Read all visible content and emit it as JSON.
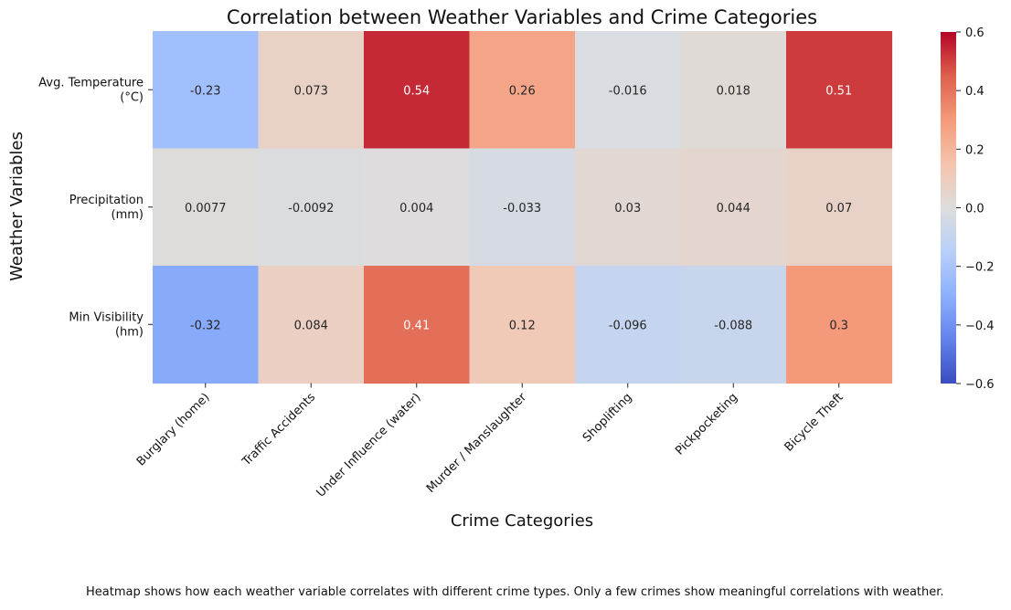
{
  "chart_data": {
    "type": "heatmap",
    "title": "Correlation between Weather Variables and Crime Categories",
    "xlabel": "Crime Categories",
    "ylabel": "Weather Variables",
    "rows": [
      [
        "Avg. Temperature",
        "(°C)"
      ],
      [
        "Precipitation",
        "(mm)"
      ],
      [
        "Min Visibility",
        "(hm)"
      ]
    ],
    "columns": [
      "Burglary (home)",
      "Traffic Accidents",
      "Under Influence (water)",
      "Murder / Manslaughter",
      "Shoplifting",
      "Pickpocketing",
      "Bicycle Theft"
    ],
    "values": [
      [
        -0.23,
        0.073,
        0.54,
        0.26,
        -0.016,
        0.018,
        0.51
      ],
      [
        0.0077,
        -0.0092,
        0.004,
        -0.033,
        0.03,
        0.044,
        0.07
      ],
      [
        -0.32,
        0.084,
        0.41,
        0.12,
        -0.096,
        -0.088,
        0.3
      ]
    ],
    "value_labels": [
      [
        "-0.23",
        "0.073",
        "0.54",
        "0.26",
        "-0.016",
        "0.018",
        "0.51"
      ],
      [
        "0.0077",
        "-0.0092",
        "0.004",
        "-0.033",
        "0.03",
        "0.044",
        "0.07"
      ],
      [
        "-0.32",
        "0.084",
        "0.41",
        "0.12",
        "-0.096",
        "-0.088",
        "0.3"
      ]
    ],
    "colormap": "coolwarm",
    "colorbar": {
      "range": [
        -0.6,
        0.6
      ],
      "ticks": [
        -0.6,
        -0.4,
        -0.2,
        0.0,
        0.2,
        0.4,
        0.6
      ],
      "tick_labels": [
        "−0.6",
        "−0.4",
        "−0.2",
        "0.0",
        "0.2",
        "0.4",
        "0.6"
      ]
    },
    "grid": false
  },
  "caption": "Heatmap shows how each weather variable correlates with different crime types. Only a few crimes show meaningful correlations with weather."
}
